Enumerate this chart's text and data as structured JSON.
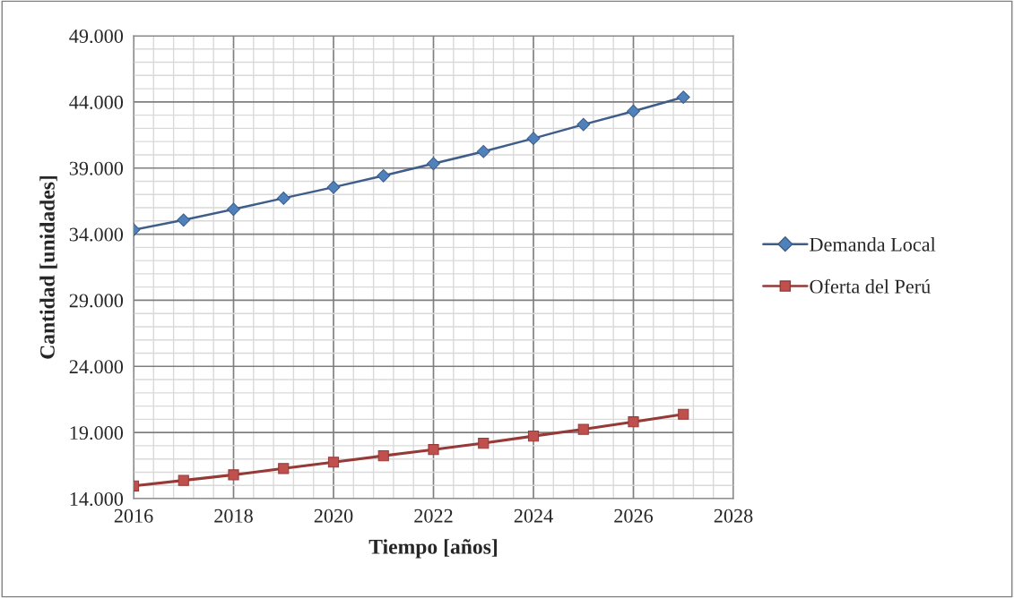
{
  "chart_data": {
    "type": "line",
    "xlabel": "Tiempo [años]",
    "ylabel": "Cantidad [unidades]",
    "x": [
      2016,
      2017,
      2018,
      2019,
      2020,
      2021,
      2022,
      2023,
      2024,
      2025,
      2026,
      2027
    ],
    "series": [
      {
        "name": "Demanda Local",
        "color": "#4f81bd",
        "marker": "diamond",
        "values": [
          34330,
          35070,
          35880,
          36720,
          37550,
          38420,
          39330,
          40250,
          41240,
          42290,
          43300,
          44360
        ]
      },
      {
        "name": "Oferta del Perú",
        "color": "#c0504d",
        "marker": "square",
        "values": [
          14960,
          15380,
          15800,
          16280,
          16760,
          17240,
          17710,
          18190,
          18730,
          19240,
          19810,
          20380
        ]
      }
    ],
    "xlim": [
      2016,
      2028
    ],
    "xticks": [
      2016,
      2018,
      2020,
      2022,
      2024,
      2026,
      2028
    ],
    "ylim": [
      14000,
      49000
    ],
    "yticks": [
      {
        "value": 14000,
        "label": "14.000"
      },
      {
        "value": 19000,
        "label": "19.000"
      },
      {
        "value": 24000,
        "label": "24.000"
      },
      {
        "value": 29000,
        "label": "29.000"
      },
      {
        "value": 34000,
        "label": "34.000"
      },
      {
        "value": 39000,
        "label": "39.000"
      },
      {
        "value": 44000,
        "label": "44.000"
      },
      {
        "value": 49000,
        "label": "49.000"
      }
    ],
    "grid": true,
    "legend": "right",
    "line_style": "solid"
  }
}
